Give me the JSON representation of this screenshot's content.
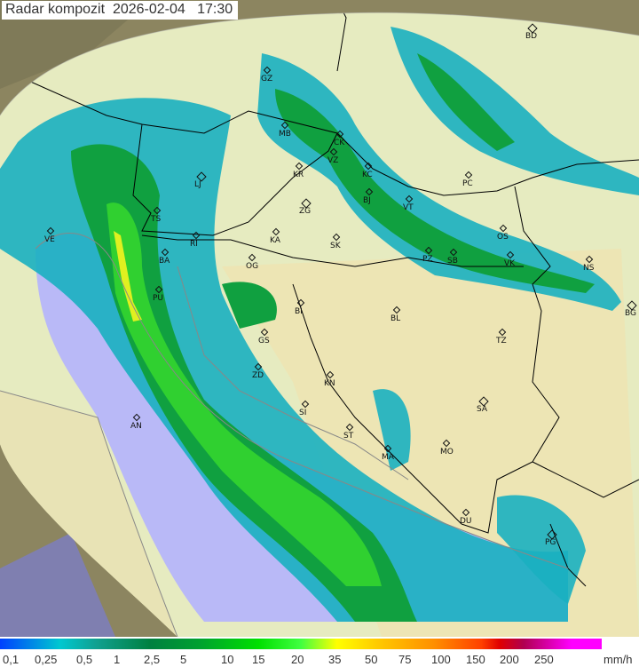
{
  "header": {
    "title": "Radar kompozit",
    "date": "2026-02-04",
    "time": "17:30"
  },
  "colors": {
    "sea": "#b9b9f7",
    "outside_coverage": "#8c8560",
    "land": "#e6ebc0",
    "radar_low": "#1ab0c0",
    "radar_mid": "#10a040",
    "radar_high": "#30e030"
  },
  "cities": [
    {
      "code": "BD"
    },
    {
      "code": "GZ"
    },
    {
      "code": "MB"
    },
    {
      "code": "CK"
    },
    {
      "code": "VZ"
    },
    {
      "code": "KR"
    },
    {
      "code": "KC"
    },
    {
      "code": "LJ"
    },
    {
      "code": "ZG"
    },
    {
      "code": "BJ"
    },
    {
      "code": "VT"
    },
    {
      "code": "PC"
    },
    {
      "code": "TS"
    },
    {
      "code": "VE"
    },
    {
      "code": "RI"
    },
    {
      "code": "KA"
    },
    {
      "code": "SK"
    },
    {
      "code": "OS"
    },
    {
      "code": "BA"
    },
    {
      "code": "OG"
    },
    {
      "code": "PZ"
    },
    {
      "code": "SB"
    },
    {
      "code": "VK"
    },
    {
      "code": "NS"
    },
    {
      "code": "PU"
    },
    {
      "code": "BI"
    },
    {
      "code": "BG"
    },
    {
      "code": "BL"
    },
    {
      "code": "GS"
    },
    {
      "code": "TZ"
    },
    {
      "code": "ZD"
    },
    {
      "code": "KN"
    },
    {
      "code": "SA"
    },
    {
      "code": "SI"
    },
    {
      "code": "AN"
    },
    {
      "code": "ST"
    },
    {
      "code": "MO"
    },
    {
      "code": "MA"
    },
    {
      "code": "DU"
    },
    {
      "code": "PG"
    }
  ],
  "legend": {
    "unit": "mm/h",
    "labels": [
      "0,1",
      "0,25",
      "0,5",
      "1",
      "2,5",
      "5",
      "10",
      "15",
      "20",
      "35",
      "50",
      "75",
      "100",
      "150",
      "200",
      "250"
    ]
  }
}
